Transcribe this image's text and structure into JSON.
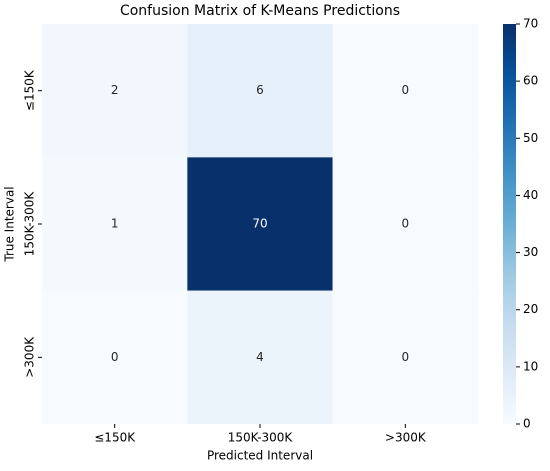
{
  "chart_data": {
    "type": "heatmap",
    "title": "Confusion Matrix of K-Means Predictions",
    "x_label": "Predicted Interval",
    "y_label": "True Interval",
    "x_categories": [
      "≤150K",
      "150K-300K",
      ">300K"
    ],
    "y_categories": [
      "≤150K",
      "150K-300K",
      ">300K"
    ],
    "values": [
      [
        2,
        6,
        0
      ],
      [
        1,
        70,
        0
      ],
      [
        0,
        4,
        0
      ]
    ],
    "colormap": "Blues",
    "zlim": [
      0,
      70
    ],
    "zticks": [
      0,
      10,
      20,
      30,
      40,
      50,
      60,
      70
    ]
  }
}
